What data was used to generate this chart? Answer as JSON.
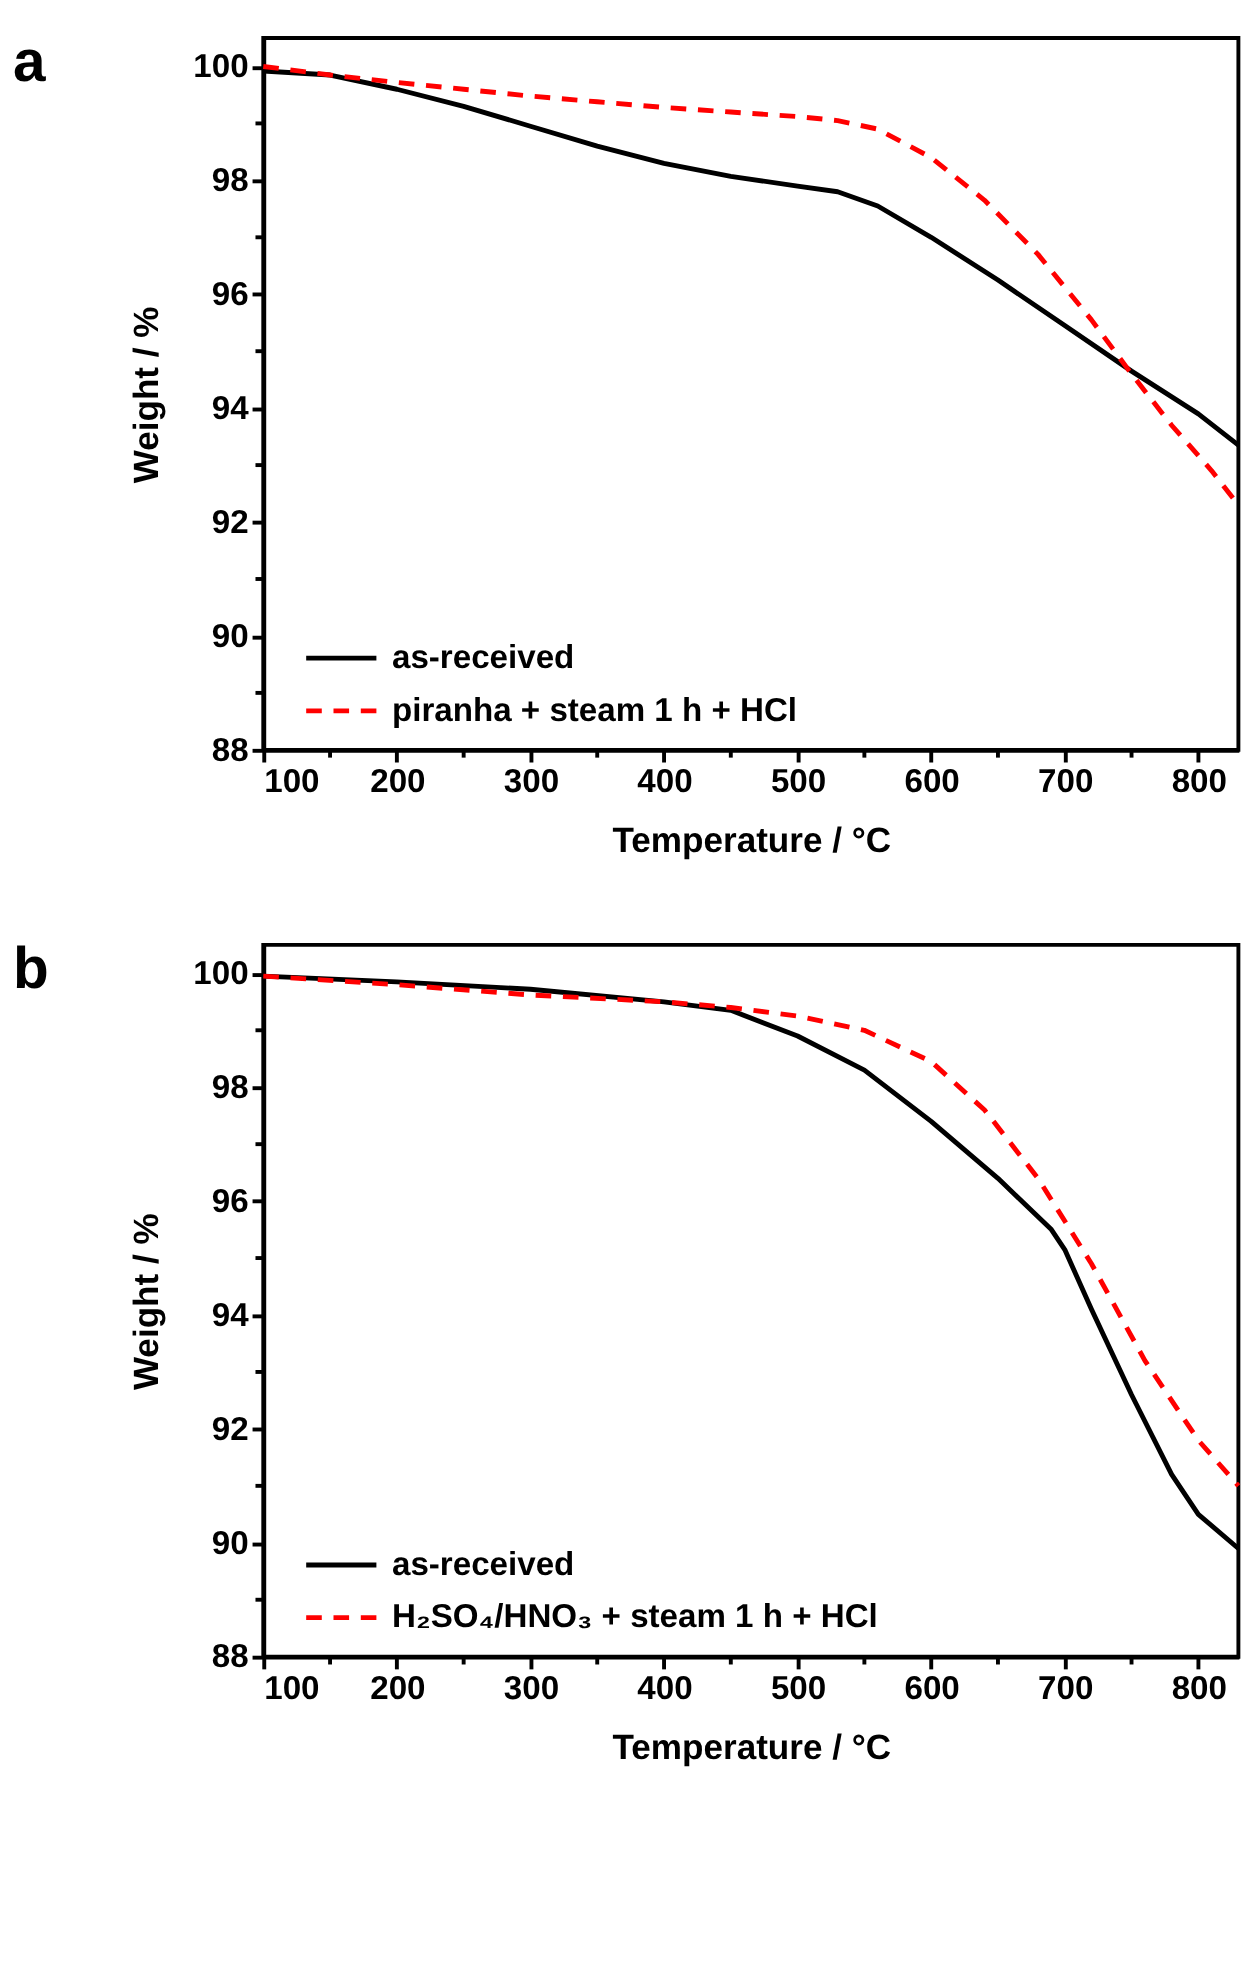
{
  "chart_data": [
    {
      "type": "line",
      "title": "a",
      "xlabel": "Temperature / °C",
      "ylabel": "Weight / %",
      "xlim": [
        100,
        830
      ],
      "ylim": [
        88,
        100.5
      ],
      "xticks": [
        100,
        {
          "value": 150,
          "label": null
        },
        200,
        {
          "value": 250,
          "label": null
        },
        300,
        {
          "value": 350,
          "label": null
        },
        400,
        {
          "value": 450,
          "label": null
        },
        500,
        {
          "value": 550,
          "label": null
        },
        600,
        {
          "value": 650,
          "label": null
        },
        700,
        {
          "value": 750,
          "label": null
        },
        800
      ],
      "yticks": [
        88,
        {
          "value": 89,
          "label": null
        },
        90,
        {
          "value": 91,
          "label": null
        },
        92,
        {
          "value": 93,
          "label": null
        },
        94,
        {
          "value": 95,
          "label": null
        },
        96,
        {
          "value": 97,
          "label": null
        },
        98,
        {
          "value": 99,
          "label": null
        },
        100
      ],
      "grid": false,
      "legend": "bottom left",
      "series": [
        {
          "name": "as-received",
          "color": "#000000",
          "line_style": "solid",
          "x": [
            100,
            150,
            200,
            250,
            300,
            350,
            400,
            450,
            500,
            530,
            560,
            600,
            650,
            700,
            750,
            800,
            830
          ],
          "values": [
            99.92,
            99.85,
            99.6,
            99.3,
            98.95,
            98.6,
            98.3,
            98.07,
            97.9,
            97.8,
            97.55,
            97.0,
            96.25,
            95.45,
            94.65,
            93.9,
            93.35
          ]
        },
        {
          "name": "piranha + steam 1 h + HCl",
          "color": "#ff0000",
          "line_style": "dashed",
          "x": [
            100,
            150,
            200,
            250,
            300,
            350,
            400,
            450,
            500,
            530,
            560,
            600,
            640,
            680,
            720,
            750,
            780,
            810,
            830
          ],
          "values": [
            100,
            99.85,
            99.72,
            99.6,
            99.48,
            99.38,
            99.28,
            99.2,
            99.12,
            99.05,
            98.9,
            98.4,
            97.65,
            96.7,
            95.55,
            94.6,
            93.7,
            92.9,
            92.3
          ]
        }
      ]
    },
    {
      "type": "line",
      "title": "b",
      "xlabel": "Temperature / °C",
      "ylabel": "Weight / %",
      "xlim": [
        100,
        830
      ],
      "ylim": [
        88,
        100.5
      ],
      "xticks": [
        100,
        {
          "value": 150,
          "label": null
        },
        200,
        {
          "value": 250,
          "label": null
        },
        300,
        {
          "value": 350,
          "label": null
        },
        400,
        {
          "value": 450,
          "label": null
        },
        500,
        {
          "value": 550,
          "label": null
        },
        600,
        {
          "value": 650,
          "label": null
        },
        700,
        {
          "value": 750,
          "label": null
        },
        800
      ],
      "yticks": [
        88,
        {
          "value": 89,
          "label": null
        },
        90,
        {
          "value": 91,
          "label": null
        },
        92,
        {
          "value": 93,
          "label": null
        },
        94,
        {
          "value": 95,
          "label": null
        },
        96,
        {
          "value": 97,
          "label": null
        },
        98,
        {
          "value": 99,
          "label": null
        },
        100
      ],
      "grid": false,
      "legend": "bottom left",
      "series": [
        {
          "name": "as-received",
          "color": "#000000",
          "line_style": "solid",
          "x": [
            100,
            200,
            300,
            400,
            450,
            500,
            550,
            600,
            650,
            690,
            700,
            720,
            750,
            780,
            800,
            830
          ],
          "values": [
            99.95,
            99.85,
            99.72,
            99.5,
            99.35,
            98.9,
            98.3,
            97.4,
            96.4,
            95.5,
            95.15,
            94.1,
            92.6,
            91.2,
            90.5,
            89.9
          ]
        },
        {
          "name": "H₂SO₄/HNO₃ + steam 1 h + HCl",
          "color": "#ff0000",
          "line_style": "dashed",
          "x": [
            100,
            200,
            300,
            400,
            450,
            500,
            550,
            600,
            640,
            680,
            720,
            760,
            800,
            830
          ],
          "values": [
            99.95,
            99.8,
            99.62,
            99.5,
            99.4,
            99.25,
            99.0,
            98.45,
            97.6,
            96.4,
            94.9,
            93.2,
            91.8,
            91.0
          ]
        }
      ]
    }
  ]
}
